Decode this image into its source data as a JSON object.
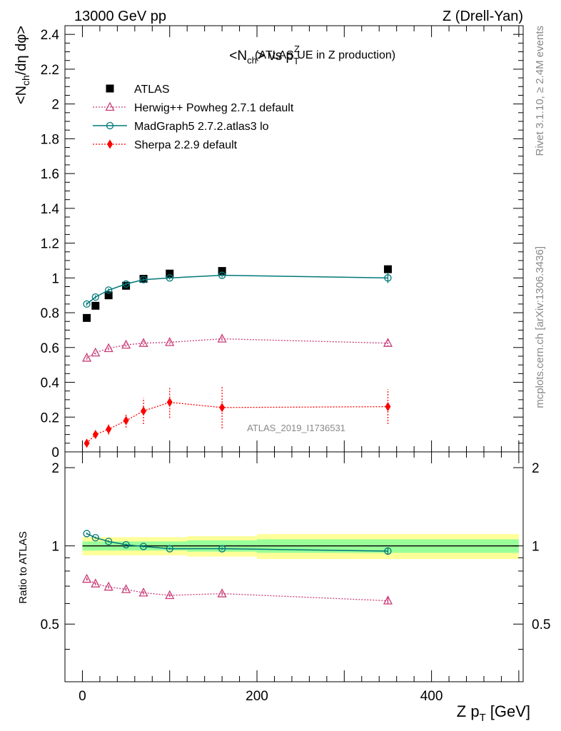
{
  "header": {
    "left": "13000 GeV pp",
    "right": "Z (Drell-Yan)"
  },
  "side_labels": {
    "rivet": "Rivet 3.1.10, ≥ 2.4M events",
    "mcplots": "mcplots.cern.ch [arXiv:1306.3436]"
  },
  "watermark": "ATLAS_2019_I1736531",
  "title": {
    "main": "<N",
    "main_sub": "ch",
    "vs": "> vs p",
    "pt_sub": "T",
    "pt_sup": "Z",
    "note": "(ATLAS UE in Z production)"
  },
  "legend": [
    {
      "label": "ATLAS",
      "color": "#000000",
      "marker": "square",
      "line": "none"
    },
    {
      "label": "Herwig++ Powheg 2.7.1 default",
      "color": "#c83c78",
      "marker": "open-triangle",
      "line": "dotted"
    },
    {
      "label": "MadGraph5 2.7.2.atlas3 lo",
      "color": "#007878",
      "marker": "open-circle",
      "line": "solid"
    },
    {
      "label": "Sherpa 2.2.9 default",
      "color": "#ff0000",
      "marker": "diamond",
      "line": "dotted"
    }
  ],
  "axes": {
    "ylabel_top": "<N",
    "ylabel_sub": "ch",
    "ylabel_rest": "/dη dφ>",
    "ylabel_bottom": "Ratio to ATLAS",
    "xlabel_main": "Z p",
    "xlabel_sub": "T",
    "xlabel_unit": "[GeV]"
  },
  "chart_data": [
    {
      "type": "scatter",
      "panel": "main",
      "xlim": [
        -20,
        505
      ],
      "ylim": [
        0,
        2.45
      ],
      "yticks": [
        "0",
        "0.2",
        "0.4",
        "0.6",
        "0.8",
        "1",
        "1.2",
        "1.4",
        "1.6",
        "1.8",
        "2",
        "2.2",
        "2.4"
      ],
      "x": [
        5,
        15,
        30,
        50,
        70,
        100,
        160,
        350
      ],
      "series": [
        {
          "name": "ATLAS",
          "values": [
            0.77,
            0.84,
            0.9,
            0.955,
            0.995,
            1.025,
            1.04,
            1.05
          ],
          "err": [
            0,
            0,
            0,
            0,
            0,
            0,
            0,
            0
          ]
        },
        {
          "name": "Herwig++ Powheg 2.7.1 default",
          "values": [
            0.54,
            0.57,
            0.595,
            0.615,
            0.625,
            0.63,
            0.65,
            0.625
          ],
          "err": [
            0.01,
            0.01,
            0.01,
            0.01,
            0.012,
            0.012,
            0.012,
            0.02
          ]
        },
        {
          "name": "MadGraph5 2.7.2.atlas3 lo",
          "values": [
            0.85,
            0.89,
            0.93,
            0.965,
            0.99,
            1.0,
            1.015,
            1.0
          ],
          "err": [
            0.01,
            0.01,
            0.01,
            0.01,
            0.01,
            0.01,
            0.012,
            0.03
          ]
        },
        {
          "name": "Sherpa 2.2.9 default",
          "values": [
            0.05,
            0.1,
            0.13,
            0.18,
            0.235,
            0.285,
            0.255,
            0.26
          ],
          "err": [
            0.02,
            0.02,
            0.03,
            0.04,
            0.075,
            0.09,
            0.12,
            0.1
          ]
        }
      ]
    },
    {
      "type": "line",
      "panel": "ratio",
      "xlim": [
        -20,
        505
      ],
      "ylim": [
        0.3,
        2.3
      ],
      "yticks": [
        "0.5",
        "1",
        "2"
      ],
      "ylog": true,
      "x": [
        5,
        15,
        30,
        50,
        70,
        100,
        160,
        350
      ],
      "bands": [
        {
          "x": [
            0,
            10,
            20,
            40,
            60,
            80,
            120,
            200,
            500
          ],
          "yellow": [
            0.08,
            0.08,
            0.08,
            0.08,
            0.08,
            0.08,
            0.09,
            0.11
          ],
          "green": [
            0.04,
            0.04,
            0.04,
            0.04,
            0.04,
            0.04,
            0.05,
            0.06
          ]
        }
      ],
      "series": [
        {
          "name": "Herwig++ Powheg 2.7.1 default",
          "values": [
            0.745,
            0.715,
            0.695,
            0.68,
            0.66,
            0.645,
            0.655,
            0.615
          ],
          "err": [
            0.01,
            0.01,
            0.01,
            0.01,
            0.01,
            0.01,
            0.012,
            0.02
          ]
        },
        {
          "name": "MadGraph5 2.7.2.atlas3 lo",
          "values": [
            1.115,
            1.075,
            1.04,
            1.01,
            0.995,
            0.975,
            0.975,
            0.955
          ],
          "err": [
            0.01,
            0.01,
            0.01,
            0.01,
            0.01,
            0.01,
            0.012,
            0.025
          ]
        }
      ],
      "xticks": [
        "0",
        "200",
        "400"
      ]
    }
  ]
}
